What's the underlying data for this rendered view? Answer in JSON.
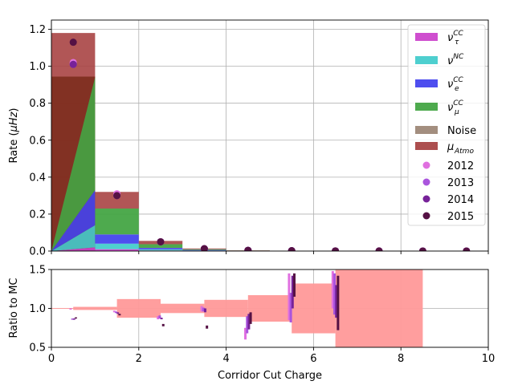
{
  "chart_data": [
    {
      "type": "bar",
      "subtype": "stacked-histogram-with-points",
      "xlim": [
        0,
        10
      ],
      "ylim": [
        0,
        1.25
      ],
      "yticks": [
        0.0,
        0.2,
        0.4,
        0.6,
        0.8,
        1.0,
        1.2
      ],
      "yticklabels": [
        "0.0",
        "0.2",
        "0.4",
        "0.6",
        "0.8",
        "1.0",
        "1.2"
      ],
      "ylabel": "Rate (μHz)",
      "grid": true,
      "legend_position": "upper right",
      "bin_edges": [
        0,
        1,
        2,
        3,
        4,
        5,
        6,
        7,
        8,
        9,
        10
      ],
      "stack_series": [
        {
          "name": "ν_τ^CC",
          "label_base": "ν",
          "label_sub": "τ",
          "label_sup": "CC",
          "color": "#cc44cc",
          "values": [
            0.02,
            0.01,
            0.003,
            0.001,
            0.0004,
            0.0002,
            0.0001,
            0.0001,
            0.0001,
            0.0001
          ]
        },
        {
          "name": "ν^NC",
          "label_base": "ν",
          "label_sub": "",
          "label_sup": "NC",
          "color": "#44cccc",
          "values": [
            0.12,
            0.03,
            0.006,
            0.002,
            0.0006,
            0.0003,
            0.0001,
            0.0001,
            0.0001,
            0.0001
          ]
        },
        {
          "name": "ν_e^CC",
          "label_base": "ν",
          "label_sub": "e",
          "label_sup": "CC",
          "color": "#4444ee",
          "values": [
            0.19,
            0.05,
            0.008,
            0.003,
            0.0008,
            0.0003,
            0.0001,
            0.0001,
            0.0001,
            0.0001
          ]
        },
        {
          "name": "ν_μ^CC",
          "label_base": "ν",
          "label_sub": "μ",
          "label_sup": "CC",
          "color": "#44a544",
          "values": [
            0.61,
            0.14,
            0.02,
            0.004,
            0.001,
            0.0004,
            0.0002,
            0.0001,
            0.0001,
            0.0001
          ]
        },
        {
          "name": "Noise",
          "label_base": "Noise",
          "label_sub": "",
          "label_sup": "",
          "color": "#9e8878",
          "values": [
            0.0,
            0.0,
            0.0,
            0.0,
            0.0,
            0.0,
            0.0,
            0.0,
            0.0,
            0.0
          ]
        },
        {
          "name": "μ_Atmo",
          "label_base": "μ",
          "label_sub": "Atmo",
          "label_sup": "",
          "color": "#a84444",
          "values": [
            0.24,
            0.09,
            0.018,
            0.004,
            0.001,
            0.0004,
            0.0002,
            0.0001,
            0.0001,
            0.0001
          ]
        }
      ],
      "muon_mask_fraction": 0.8,
      "points": [
        {
          "name": "2012",
          "color": "#e070e0",
          "x": [
            0.5,
            1.5,
            2.5,
            3.5,
            4.5,
            5.5,
            6.5,
            7.5,
            8.5,
            9.5
          ],
          "y": [
            1.02,
            0.31,
            0.05,
            0.013,
            0.004,
            0.002,
            0.0007,
            0.0003,
            0.0002,
            0.0001
          ]
        },
        {
          "name": "2013",
          "color": "#aa55dd",
          "x": [
            0.5,
            1.5,
            2.5,
            3.5,
            4.5,
            5.5,
            6.5,
            7.5,
            8.5,
            9.5
          ],
          "y": [
            1.01,
            0.3,
            0.05,
            0.012,
            0.004,
            0.002,
            0.0007,
            0.0003,
            0.0002,
            0.0001
          ]
        },
        {
          "name": "2014",
          "color": "#772299",
          "x": [
            0.5,
            1.5,
            2.5,
            3.5,
            4.5,
            5.5,
            6.5,
            7.5,
            8.5,
            9.5
          ],
          "y": [
            1.01,
            0.3,
            0.05,
            0.012,
            0.004,
            0.002,
            0.0007,
            0.0003,
            0.0002,
            0.0001
          ]
        },
        {
          "name": "2015",
          "color": "#551144",
          "x": [
            0.5,
            1.5,
            2.5,
            3.5,
            4.5,
            5.5,
            6.5,
            7.5,
            8.5,
            9.5
          ],
          "y": [
            1.13,
            0.3,
            0.05,
            0.013,
            0.004,
            0.002,
            0.0008,
            0.0003,
            0.0002,
            0.0001
          ]
        }
      ]
    },
    {
      "type": "bar",
      "subtype": "ratio-band-with-errorbars",
      "xlim": [
        0,
        10
      ],
      "ylim": [
        0.5,
        1.5
      ],
      "xticks": [
        0,
        2,
        4,
        6,
        8,
        10
      ],
      "xticklabels": [
        "0",
        "2",
        "4",
        "6",
        "8",
        "10"
      ],
      "yticks": [
        0.5,
        1.0,
        1.5
      ],
      "yticklabels": [
        "0.5",
        "1.0",
        "1.5"
      ],
      "xlabel": "Corridor Cut Charge",
      "ylabel": "Ratio to MC",
      "grid": true,
      "band_color": "#ff9999",
      "band": [
        {
          "x0": 0.0,
          "x1": 0.5,
          "lo": 0.995,
          "hi": 1.005
        },
        {
          "x0": 0.5,
          "x1": 1.5,
          "lo": 0.98,
          "hi": 1.02
        },
        {
          "x0": 1.5,
          "x1": 2.5,
          "lo": 0.88,
          "hi": 1.12
        },
        {
          "x0": 2.5,
          "x1": 3.5,
          "lo": 0.94,
          "hi": 1.06
        },
        {
          "x0": 3.5,
          "x1": 4.5,
          "lo": 0.89,
          "hi": 1.11
        },
        {
          "x0": 4.5,
          "x1": 5.5,
          "lo": 0.83,
          "hi": 1.17
        },
        {
          "x0": 5.5,
          "x1": 6.5,
          "lo": 0.68,
          "hi": 1.32
        },
        {
          "x0": 6.5,
          "x1": 8.5,
          "lo": 0.5,
          "hi": 1.5
        }
      ],
      "errorbars": [
        {
          "name": "2012",
          "color": "#e070e0",
          "offset": -0.06,
          "width": 3,
          "bars": [
            [
              0.5,
              0.99,
              1.0
            ],
            [
              1.5,
              0.95,
              0.97
            ],
            [
              2.5,
              0.86,
              0.9
            ],
            [
              3.5,
              0.96,
              1.03
            ],
            [
              4.5,
              0.6,
              0.75
            ],
            [
              5.5,
              0.85,
              1.45
            ],
            [
              6.5,
              1.0,
              1.48
            ]
          ]
        },
        {
          "name": "2013",
          "color": "#aa55dd",
          "offset": -0.02,
          "width": 3,
          "bars": [
            [
              0.5,
              0.86,
              0.87
            ],
            [
              1.5,
              0.94,
              0.96
            ],
            [
              2.5,
              0.87,
              0.91
            ],
            [
              3.5,
              0.96,
              1.01
            ],
            [
              4.5,
              0.68,
              0.9
            ],
            [
              5.5,
              0.82,
              1.2
            ],
            [
              6.5,
              0.92,
              1.45
            ]
          ]
        },
        {
          "name": "2014",
          "color": "#772299",
          "offset": 0.02,
          "width": 3,
          "bars": [
            [
              0.5,
              0.86,
              0.87
            ],
            [
              1.5,
              0.93,
              0.95
            ],
            [
              2.5,
              0.86,
              0.88
            ],
            [
              3.5,
              0.95,
              1.0
            ],
            [
              4.5,
              0.73,
              0.93
            ],
            [
              5.5,
              1.0,
              1.42
            ],
            [
              6.5,
              0.88,
              1.3
            ]
          ]
        },
        {
          "name": "2015",
          "color": "#551144",
          "offset": 0.06,
          "width": 3,
          "bars": [
            [
              0.5,
              0.88,
              0.885
            ],
            [
              1.5,
              0.91,
              0.93
            ],
            [
              2.5,
              0.77,
              0.8
            ],
            [
              3.5,
              0.74,
              0.78
            ],
            [
              4.5,
              0.8,
              0.95
            ],
            [
              5.5,
              1.15,
              1.45
            ],
            [
              6.5,
              0.72,
              1.42
            ]
          ]
        }
      ]
    }
  ]
}
